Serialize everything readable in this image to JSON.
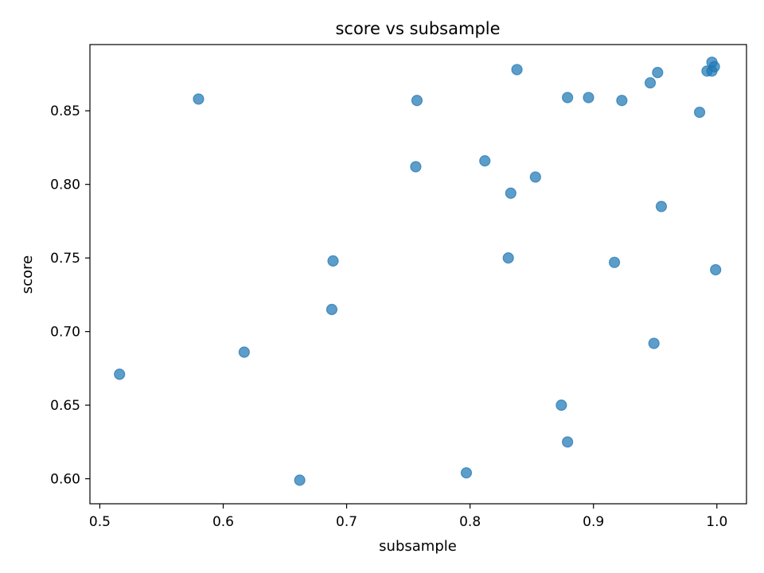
{
  "chart_data": {
    "type": "scatter",
    "title": "score vs subsample",
    "xlabel": "subsample",
    "ylabel": "score",
    "xlim": [
      0.492,
      1.024
    ],
    "ylim": [
      0.583,
      0.895
    ],
    "xticks": [
      0.5,
      0.6,
      0.7,
      0.8,
      0.9,
      1.0
    ],
    "xtick_labels": [
      "0.5",
      "0.6",
      "0.7",
      "0.8",
      "0.9",
      "1.0"
    ],
    "yticks": [
      0.6,
      0.65,
      0.7,
      0.75,
      0.8,
      0.85
    ],
    "ytick_labels": [
      "0.60",
      "0.65",
      "0.70",
      "0.75",
      "0.80",
      "0.85"
    ],
    "grid": false,
    "color": "#1f77b4",
    "points": [
      {
        "x": 0.516,
        "y": 0.671
      },
      {
        "x": 0.58,
        "y": 0.858
      },
      {
        "x": 0.617,
        "y": 0.686
      },
      {
        "x": 0.662,
        "y": 0.599
      },
      {
        "x": 0.688,
        "y": 0.715
      },
      {
        "x": 0.689,
        "y": 0.748
      },
      {
        "x": 0.756,
        "y": 0.812
      },
      {
        "x": 0.757,
        "y": 0.857
      },
      {
        "x": 0.797,
        "y": 0.604
      },
      {
        "x": 0.812,
        "y": 0.816
      },
      {
        "x": 0.831,
        "y": 0.75
      },
      {
        "x": 0.833,
        "y": 0.794
      },
      {
        "x": 0.838,
        "y": 0.878
      },
      {
        "x": 0.853,
        "y": 0.805
      },
      {
        "x": 0.874,
        "y": 0.65
      },
      {
        "x": 0.879,
        "y": 0.859
      },
      {
        "x": 0.879,
        "y": 0.625
      },
      {
        "x": 0.896,
        "y": 0.859
      },
      {
        "x": 0.917,
        "y": 0.747
      },
      {
        "x": 0.923,
        "y": 0.857
      },
      {
        "x": 0.946,
        "y": 0.869
      },
      {
        "x": 0.949,
        "y": 0.692
      },
      {
        "x": 0.952,
        "y": 0.876
      },
      {
        "x": 0.955,
        "y": 0.785
      },
      {
        "x": 0.986,
        "y": 0.849
      },
      {
        "x": 0.992,
        "y": 0.877
      },
      {
        "x": 0.996,
        "y": 0.883
      },
      {
        "x": 0.996,
        "y": 0.877
      },
      {
        "x": 0.998,
        "y": 0.88
      },
      {
        "x": 0.999,
        "y": 0.742
      }
    ]
  }
}
